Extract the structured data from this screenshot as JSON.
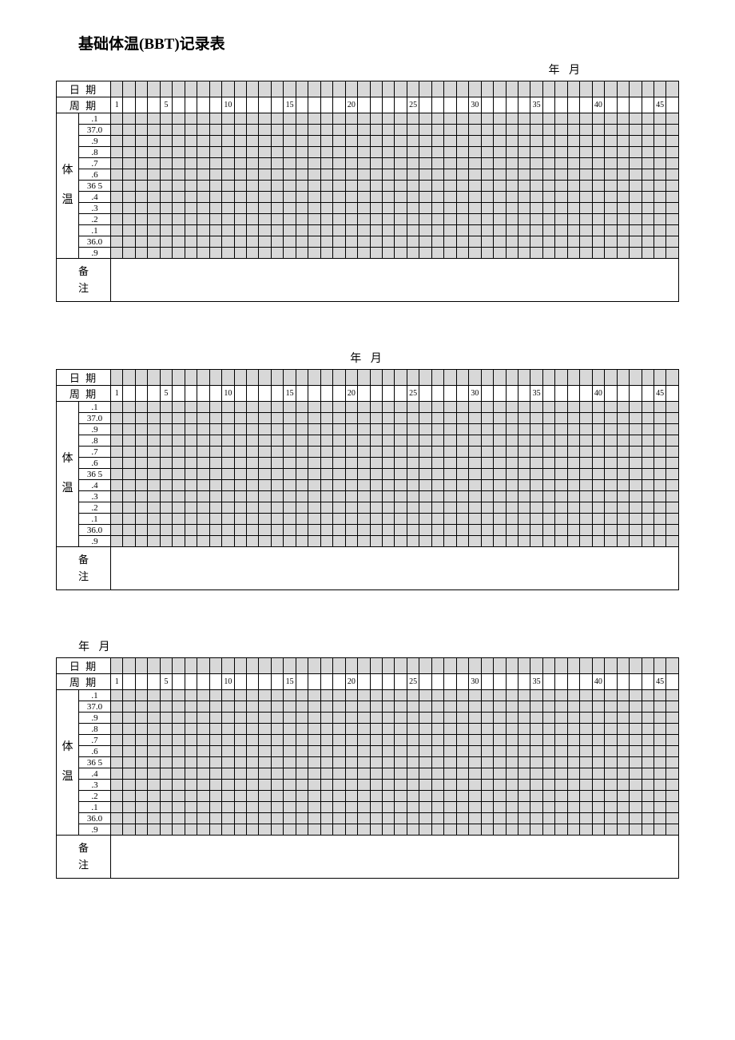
{
  "title": "基础体温(BBT)记录表",
  "year_month_label": "年  月",
  "row_labels": {
    "date": "日  期",
    "cycle": "周  期",
    "temp_vert": "体温",
    "notes": "备注"
  },
  "temp_scale": [
    ".1",
    "37.0",
    ".9",
    ".8",
    ".7",
    ".6",
    "36 5",
    ".4",
    ".3",
    ".2",
    ".1",
    "36.0",
    ".9"
  ],
  "cycle_numbers": [
    1,
    5,
    10,
    15,
    20,
    25,
    30,
    35,
    40,
    45
  ],
  "num_days": 46,
  "charts": [
    {
      "ym_align": "right"
    },
    {
      "ym_align": "center"
    },
    {
      "ym_align": "left"
    }
  ],
  "colors": {
    "shade": "#d8d8d8",
    "line": "#000000",
    "bg": "#ffffff"
  }
}
